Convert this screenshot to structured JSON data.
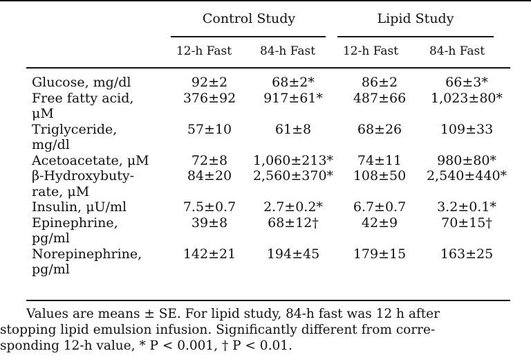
{
  "table": {
    "group_headers": [
      "Control Study",
      "Lipid Study"
    ],
    "sub_headers": [
      "12-h Fast",
      "84-h Fast",
      "12-h Fast",
      "84-h Fast"
    ],
    "rows": [
      {
        "label": [
          "Glucose, mg/dl"
        ],
        "values": [
          "92±2",
          "68±2*",
          "86±2",
          "66±3*"
        ]
      },
      {
        "label": [
          "Free fatty acid,",
          "μM"
        ],
        "values": [
          "376±92",
          "917±61*",
          "487±66",
          "1,023±80*"
        ]
      },
      {
        "label": [
          "Triglyceride,",
          "mg/dl"
        ],
        "values": [
          "57±10",
          "61±8",
          "68±26",
          "109±33"
        ]
      },
      {
        "label": [
          "Acetoacetate, μM"
        ],
        "values": [
          "72±8",
          "1,060±213*",
          "74±11",
          "980±80*"
        ]
      },
      {
        "label": [
          "β-Hydroxybuty-",
          "rate, μM"
        ],
        "values": [
          "84±20",
          "2,560±370*",
          "108±50",
          "2,540±440*"
        ]
      },
      {
        "label": [
          "Insulin, μU/ml"
        ],
        "values": [
          "7.5±0.7",
          "2.7±0.2*",
          "6.7±0.7",
          "3.2±0.1*"
        ]
      },
      {
        "label": [
          "Epinephrine,",
          "pg/ml"
        ],
        "values": [
          "39±8",
          "68±12†",
          "42±9",
          "70±15†"
        ]
      },
      {
        "label": [
          "Norepinephrine,",
          "pg/ml"
        ],
        "values": [
          "142±21",
          "194±45",
          "179±15",
          "163±25"
        ]
      }
    ]
  },
  "footnote": {
    "lines": [
      "Values are means ± SE. For lipid study, 84-h fast was 12 h after",
      "stopping lipid emulsion infusion. Significantly different from corre-",
      "sponding 12-h value, * P < 0.001, † P < 0.01."
    ]
  }
}
